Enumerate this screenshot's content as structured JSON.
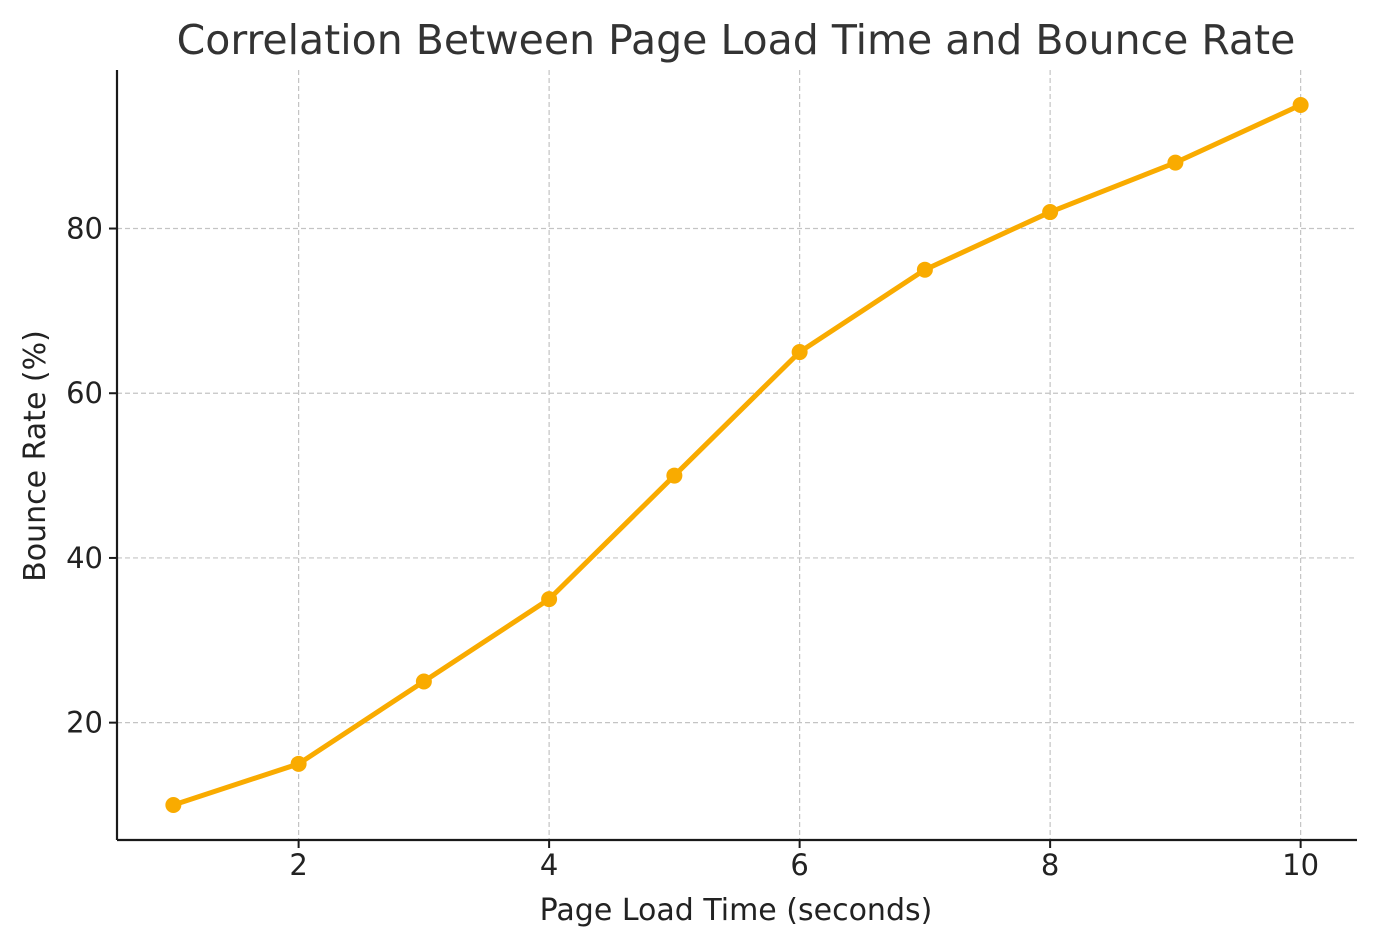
{
  "chart_data": {
    "type": "line",
    "title": "Correlation Between Page Load Time and Bounce Rate",
    "xlabel": "Page Load Time (seconds)",
    "ylabel": "Bounce Rate (%)",
    "x": [
      1,
      2,
      3,
      4,
      5,
      6,
      7,
      8,
      9,
      10
    ],
    "series": [
      {
        "values": [
          10,
          15,
          25,
          35,
          50,
          65,
          75,
          82,
          88,
          95
        ],
        "color": "#f9ab00"
      }
    ],
    "xticks": [
      2,
      4,
      6,
      8,
      10
    ],
    "yticks": [
      20,
      40,
      60,
      80
    ],
    "xlim": [
      0.55,
      10.45
    ],
    "ylim": [
      5.75,
      99.25
    ],
    "grid": true,
    "legend": "none"
  }
}
